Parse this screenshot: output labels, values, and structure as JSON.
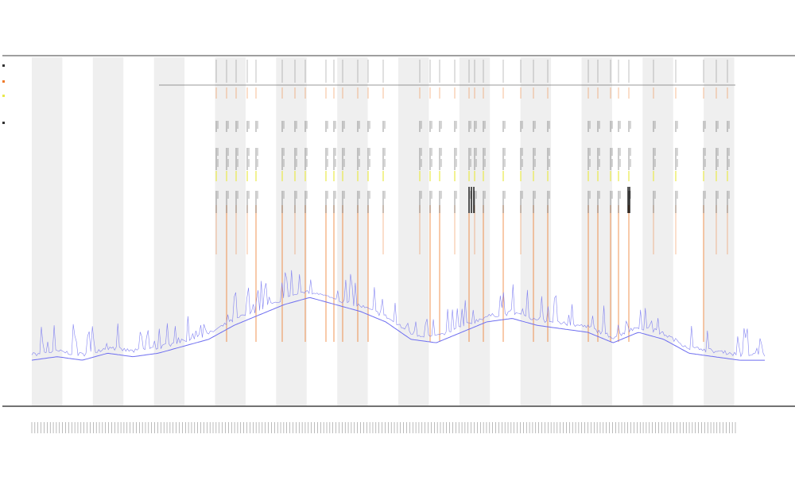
{
  "chart_data": {
    "type": "line",
    "title": "",
    "subtitles": [
      "",
      ""
    ],
    "xlabel": "",
    "ylabel": "",
    "ylim": [
      0,
      1
    ],
    "band_count": 24,
    "tick_count": 230,
    "grid": false,
    "legend_position": "top-left",
    "series": [
      {
        "color": "#6e6ef0",
        "style": "jagged baseline trace",
        "values": [
          0.14,
          0.15,
          0.14,
          0.16,
          0.15,
          0.16,
          0.18,
          0.2,
          0.24,
          0.27,
          0.3,
          0.32,
          0.3,
          0.28,
          0.25,
          0.2,
          0.19,
          0.22,
          0.25,
          0.26,
          0.24,
          0.23,
          0.22,
          0.19,
          0.22,
          0.2,
          0.16,
          0.15,
          0.14,
          0.14
        ]
      },
      {
        "color": "#ee7a2a",
        "style": "vertical event lines"
      },
      {
        "color": "#e8e84a",
        "style": "vertical event ticks"
      },
      {
        "color": "#333333",
        "style": "vertical event ticks"
      }
    ]
  },
  "legend": [
    {
      "label": "",
      "color": "#333333"
    },
    {
      "label": "",
      "color": "#ee7a2a"
    },
    {
      "label": "",
      "color": "#e8e84a"
    },
    {
      "label": "",
      "color": "#333333"
    }
  ],
  "colors": {
    "band": "#efefef",
    "axis": "#555555",
    "trace": "#6e6ef0",
    "event": "#ee7a2a",
    "tick_marker": "#333333",
    "highlight": "#e8e84a"
  }
}
